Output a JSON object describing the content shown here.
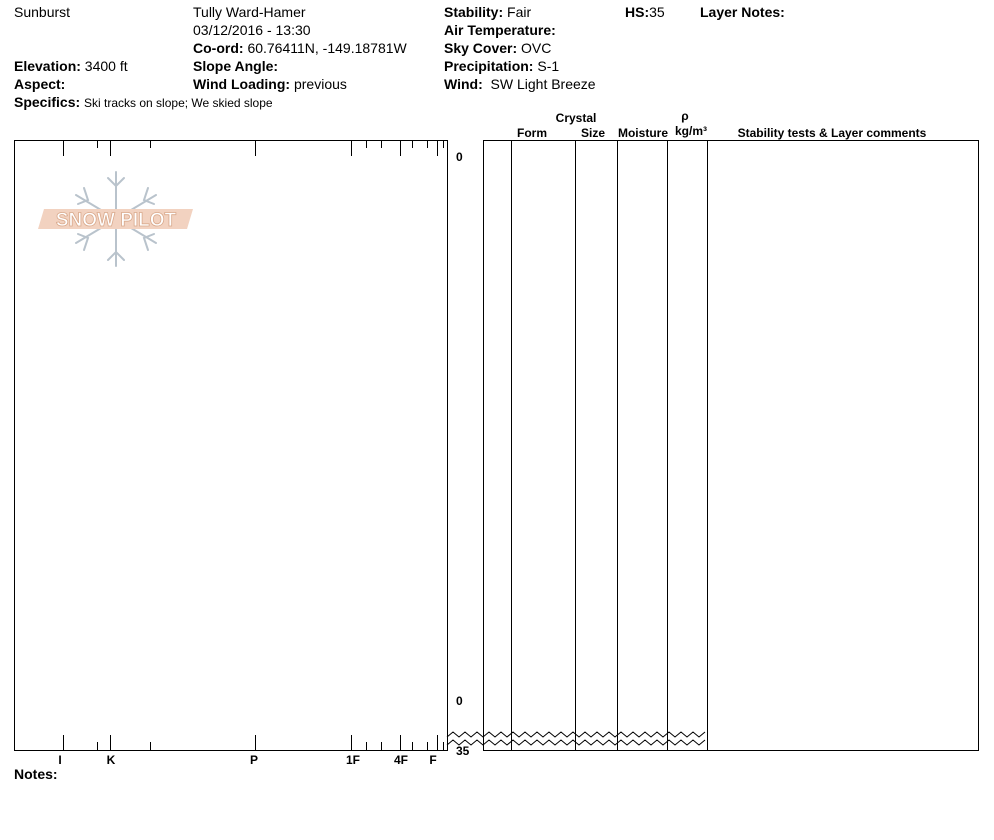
{
  "header": {
    "location": "Sunburst",
    "observer": "Tully Ward-Hamer",
    "datetime": "03/12/2016 - 13:30",
    "coord": {
      "label": "Co-ord:",
      "value": "60.76411N, -149.18781W"
    },
    "elevation": {
      "label": "Elevation:",
      "value": "3400 ft"
    },
    "aspect": {
      "label": "Aspect:"
    },
    "slope_angle": {
      "label": "Slope Angle:"
    },
    "wind_loading": {
      "label": "Wind Loading:",
      "value": "previous"
    },
    "specifics": {
      "label": "Specifics:",
      "value": "Ski tracks on slope; We skied slope"
    },
    "stability": {
      "label": "Stability:",
      "value": "Fair"
    },
    "air_temperature": {
      "label": "Air Temperature:"
    },
    "sky_cover": {
      "label": "Sky Cover:",
      "value": "OVC"
    },
    "precipitation": {
      "label": "Precipitation:",
      "value": "S-1"
    },
    "wind": {
      "label": "Wind:",
      "value": "SW Light Breeze"
    },
    "hs": {
      "label": "HS:",
      "value": 35
    },
    "layer_notes": {
      "label": "Layer Notes:"
    }
  },
  "logo": "SNOW PILOT",
  "profile": {
    "hardness_labels": [
      "I",
      "K",
      "P",
      "1F",
      "4F",
      "F"
    ],
    "depth_labels": [
      0,
      0,
      35
    ]
  },
  "table": {
    "headers": {
      "crystal": "Crystal",
      "form": "Form",
      "size": "Size",
      "moisture": "Moisture",
      "rho": "ρ",
      "density_unit": "kg/m³",
      "comments": "Stability tests & Layer comments"
    }
  },
  "notes_label": "Notes:"
}
